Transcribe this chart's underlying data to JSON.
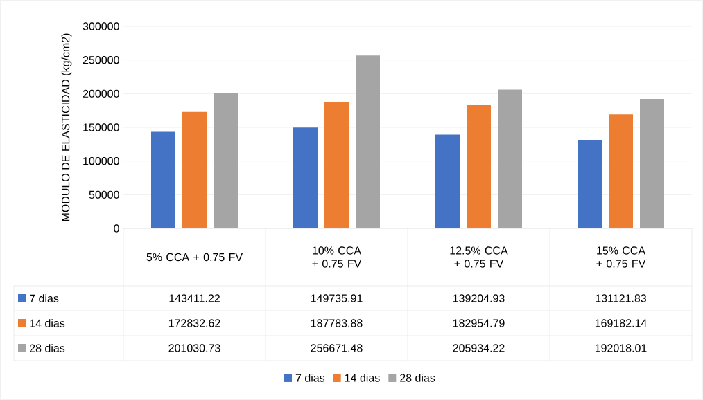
{
  "chart_data": {
    "type": "bar",
    "ylabel": "MODULO DE ELASTICIDAD (kg/cm2)",
    "categories": [
      "5% CCA + 0.75 FV",
      "10% CCA + 0.75 FV",
      "12.5% CCA + 0.75 FV",
      "15% CCA + 0.75 FV"
    ],
    "series": [
      {
        "name": "7 dias",
        "color": "#4472c4",
        "values": [
          143411.22,
          149735.91,
          139204.93,
          131121.83
        ]
      },
      {
        "name": "14 dias",
        "color": "#ed7d31",
        "values": [
          172832.62,
          187783.88,
          182954.79,
          169182.14
        ]
      },
      {
        "name": "28 dias",
        "color": "#a5a5a5",
        "values": [
          201030.73,
          256671.48,
          205934.22,
          192018.01
        ]
      }
    ],
    "ylim": [
      0,
      300000
    ],
    "yticks": [
      0,
      50000,
      100000,
      150000,
      200000,
      250000,
      300000
    ],
    "grid": "y",
    "legend": "bottom",
    "data_labels": true
  }
}
